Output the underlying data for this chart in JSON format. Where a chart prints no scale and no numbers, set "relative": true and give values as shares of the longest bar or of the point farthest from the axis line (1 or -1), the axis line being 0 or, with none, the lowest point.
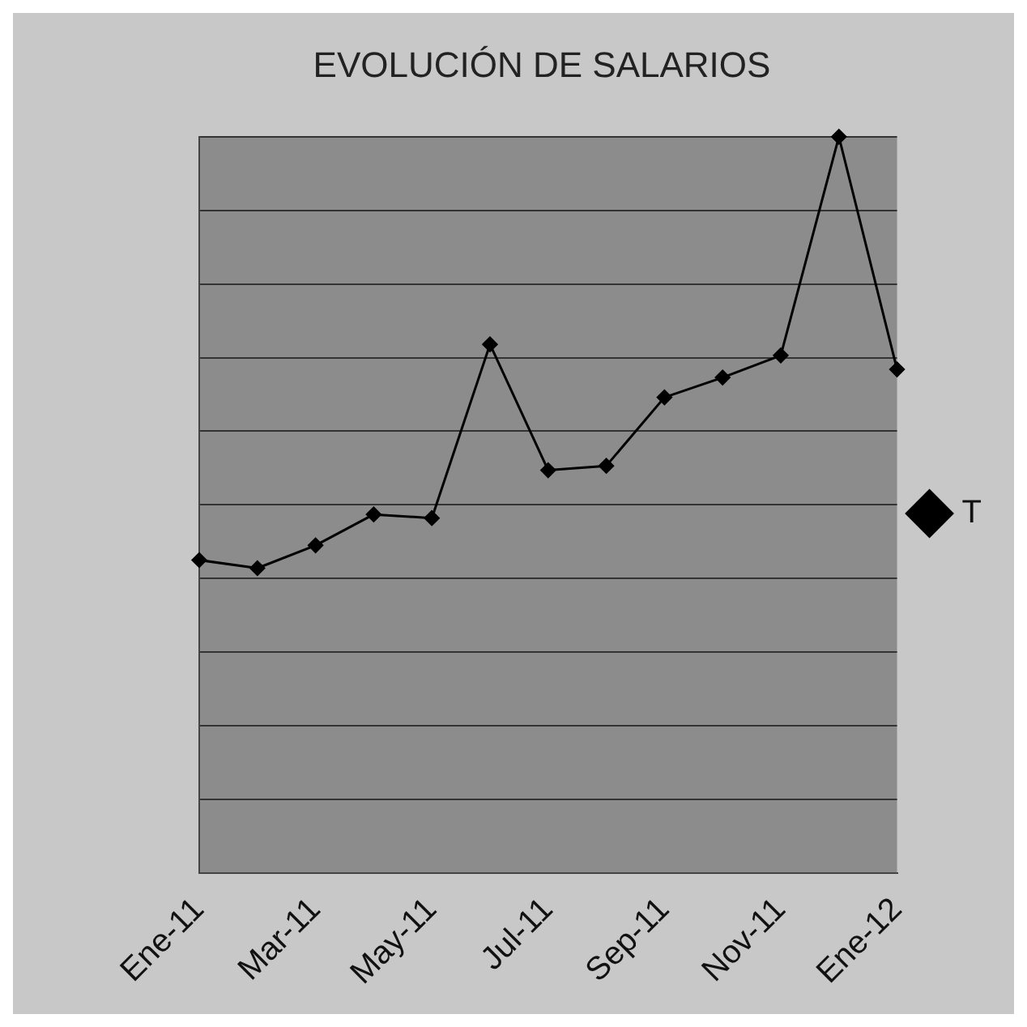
{
  "chart_data": {
    "type": "line",
    "title": "EVOLUCIÓN DE SALARIOS",
    "relative": true,
    "categories": [
      "Ene-11",
      null,
      "Mar-11",
      null,
      "May-11",
      null,
      "Jul-11",
      null,
      "Sep-11",
      null,
      "Nov-11",
      null,
      "Ene-12"
    ],
    "series": [
      {
        "name": "T",
        "color": "#000000",
        "values": [
          0.425,
          0.414,
          0.445,
          0.487,
          0.482,
          0.718,
          0.547,
          0.553,
          0.646,
          0.673,
          0.703,
          1,
          0.684
        ]
      }
    ],
    "grid": "y",
    "legend": "right",
    "marker": "diamond",
    "line_style": "solid"
  }
}
